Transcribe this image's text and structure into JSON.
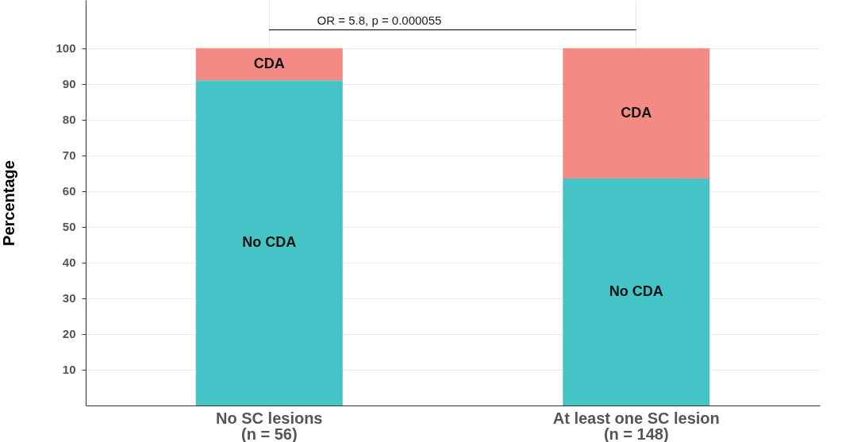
{
  "chart_data": {
    "type": "bar",
    "stacked": true,
    "ylabel": "Percentage",
    "categories": [
      "No SC lesions\n(n = 56)",
      "At least one SC lesion\n(n = 148)"
    ],
    "series": [
      {
        "name": "No CDA",
        "color": "#45c4c8",
        "values": [
          91,
          63.5
        ]
      },
      {
        "name": "CDA",
        "color": "#f38b84",
        "values": [
          9,
          36.5
        ]
      }
    ],
    "ylim": [
      0,
      113.5
    ],
    "yticks": [
      10,
      20,
      30,
      40,
      50,
      60,
      70,
      80,
      90,
      100
    ],
    "grid": true,
    "annotations": [
      "OR = 5.8, p =  0.000055"
    ]
  }
}
